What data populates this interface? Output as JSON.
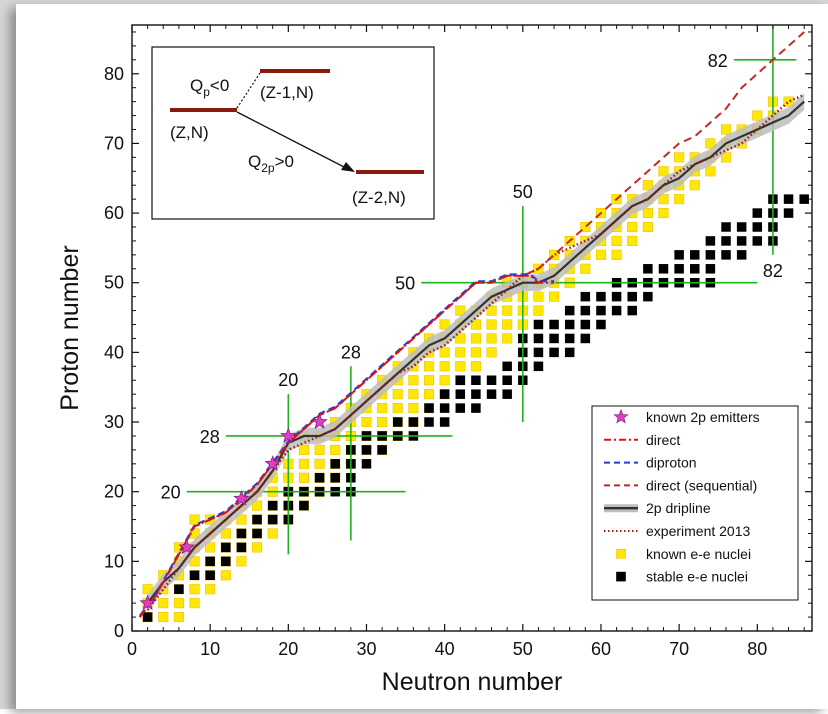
{
  "chart_data": {
    "type": "scatter",
    "xlabel": "Neutron number",
    "ylabel": "Proton number",
    "xlim": [
      0,
      87
    ],
    "ylim": [
      0,
      87
    ],
    "x_ticks": [
      "0",
      "10",
      "20",
      "30",
      "40",
      "50",
      "60",
      "70",
      "80"
    ],
    "y_ticks": [
      "0",
      "10",
      "20",
      "30",
      "40",
      "50",
      "60",
      "70",
      "80"
    ],
    "legend_position": "bottom-right",
    "magic_numbers": {
      "neutron": [
        {
          "label": "20",
          "n": 20,
          "z_range": [
            11,
            34
          ]
        },
        {
          "label": "28",
          "n": 28,
          "z_range": [
            13,
            38
          ]
        },
        {
          "label": "50",
          "n": 50,
          "z_range": [
            30,
            61
          ]
        },
        {
          "label": "82",
          "n": 82,
          "z_range": [
            54,
            87
          ]
        }
      ],
      "proton": [
        {
          "label": "20",
          "z": 20,
          "n_range": [
            7,
            35
          ]
        },
        {
          "label": "28",
          "z": 28,
          "n_range": [
            12,
            41
          ]
        },
        {
          "label": "50",
          "z": 50,
          "n_range": [
            37,
            80
          ]
        },
        {
          "label": "82",
          "z": 82,
          "n_range": [
            77,
            85
          ]
        }
      ]
    },
    "legend": [
      {
        "label": "known 2p emitters",
        "marker": "star",
        "color": "#e040c0"
      },
      {
        "label": "direct",
        "marker": "dashdot",
        "color": "#e01010"
      },
      {
        "label": "diproton",
        "marker": "dash",
        "color": "#1f3fd6"
      },
      {
        "label": "direct (sequential)",
        "marker": "dash",
        "color": "#c62828"
      },
      {
        "label": "2p dripline",
        "marker": "band",
        "color": "#333333"
      },
      {
        "label": "experiment 2013",
        "marker": "dot",
        "color": "#a01818"
      },
      {
        "label": "known e-e nuclei",
        "marker": "square",
        "color": "#ffe800"
      },
      {
        "label": "stable e-e nuclei",
        "marker": "square",
        "color": "#000000"
      }
    ],
    "series": [
      {
        "name": "known 2p emitters",
        "points": [
          [
            2,
            4
          ],
          [
            7,
            12
          ],
          [
            14,
            19
          ],
          [
            18,
            24
          ],
          [
            20,
            28
          ],
          [
            24,
            30
          ]
        ]
      },
      {
        "name": "direct",
        "x": [
          1,
          3,
          5,
          7,
          8,
          10,
          12,
          14,
          16,
          18,
          20,
          22,
          24,
          26,
          28,
          30,
          32,
          34,
          36,
          38,
          40,
          42,
          44,
          46,
          48,
          50,
          51,
          52,
          53,
          54
        ],
        "y": [
          2,
          5,
          9,
          13,
          15,
          16,
          17,
          19,
          21,
          24,
          27,
          29,
          31,
          32,
          34,
          36,
          38,
          40,
          42,
          44,
          46,
          48,
          50,
          50,
          51,
          51,
          51,
          50,
          50,
          50
        ]
      },
      {
        "name": "diproton",
        "x": [
          1,
          3,
          5,
          7,
          8,
          10,
          12,
          14,
          16,
          18,
          20,
          22,
          24,
          26,
          28,
          30,
          32,
          34,
          36,
          38,
          40,
          42,
          44,
          46,
          48,
          50,
          51,
          52,
          53,
          54
        ],
        "y": [
          2,
          5,
          9,
          13,
          15,
          16,
          17,
          19,
          21,
          24,
          27,
          29,
          31,
          32,
          34,
          36,
          38,
          40,
          42,
          44,
          46,
          48,
          50,
          50,
          51,
          51,
          51,
          50,
          50,
          50
        ]
      },
      {
        "name": "direct (sequential)",
        "x": [
          1,
          3,
          5,
          7,
          8,
          10,
          12,
          14,
          16,
          18,
          20,
          22,
          24,
          26,
          28,
          30,
          32,
          34,
          36,
          38,
          40,
          42,
          44,
          46,
          48,
          50,
          52,
          54,
          56,
          58,
          60,
          62,
          64,
          66,
          68,
          70,
          72,
          74,
          76,
          78,
          80,
          82,
          84,
          86
        ],
        "y": [
          2,
          5,
          9,
          13,
          15,
          16,
          17,
          19,
          21,
          24,
          27,
          29,
          31,
          32,
          34,
          36,
          38,
          40,
          42,
          44,
          46,
          48,
          50,
          50,
          51,
          51,
          52,
          54,
          56,
          58,
          60,
          62,
          64,
          66,
          68,
          70,
          71,
          73,
          75,
          78,
          80,
          82,
          84,
          86
        ]
      },
      {
        "name": "2p dripline",
        "x": [
          2,
          4,
          6,
          8,
          10,
          12,
          14,
          16,
          18,
          20,
          22,
          24,
          26,
          28,
          30,
          32,
          34,
          36,
          38,
          40,
          42,
          44,
          46,
          48,
          50,
          52,
          54,
          56,
          58,
          60,
          62,
          64,
          66,
          68,
          70,
          72,
          74,
          76,
          78,
          80,
          82,
          84,
          86
        ],
        "y": [
          4,
          7,
          9,
          12,
          14,
          16,
          18,
          20,
          23,
          27,
          28,
          28,
          29,
          31,
          33,
          35,
          37,
          39,
          41,
          42,
          44,
          46,
          48,
          49,
          50,
          50,
          51,
          53,
          55,
          57,
          59,
          61,
          62,
          64,
          65,
          67,
          68,
          70,
          71,
          72,
          73,
          74,
          76
        ]
      },
      {
        "name": "experiment 2013",
        "x": [
          2,
          4,
          6,
          8,
          10,
          12,
          14,
          16,
          18,
          20,
          22,
          24,
          26,
          28,
          30,
          32,
          34,
          36,
          38,
          40,
          42,
          44,
          46,
          48,
          50,
          52,
          54,
          56,
          58,
          60,
          62,
          64,
          66,
          68,
          70,
          72,
          74,
          76,
          78,
          80,
          82,
          84,
          86
        ],
        "y": [
          3,
          6,
          9,
          12,
          14,
          16,
          18,
          20,
          23,
          26,
          27,
          28,
          29,
          31,
          33,
          35,
          37,
          38,
          40,
          41,
          43,
          45,
          47,
          49,
          51,
          52,
          54,
          55,
          56,
          57,
          59,
          61,
          62,
          64,
          66,
          67,
          68,
          69,
          70,
          72,
          74,
          76,
          77
        ]
      }
    ],
    "known_ee_rows": [
      {
        "z": 2,
        "n": [
          2,
          6
        ]
      },
      {
        "z": 4,
        "n": [
          2,
          8
        ]
      },
      {
        "z": 6,
        "n": [
          2,
          10
        ]
      },
      {
        "z": 8,
        "n": [
          4,
          12
        ]
      },
      {
        "z": 10,
        "n": [
          6,
          14
        ]
      },
      {
        "z": 12,
        "n": [
          6,
          16
        ]
      },
      {
        "z": 14,
        "n": [
          8,
          18
        ]
      },
      {
        "z": 16,
        "n": [
          8,
          20
        ]
      },
      {
        "z": 18,
        "n": [
          14,
          22
        ]
      },
      {
        "z": 20,
        "n": [
          16,
          24
        ]
      },
      {
        "z": 22,
        "n": [
          18,
          26
        ]
      },
      {
        "z": 24,
        "n": [
          20,
          28
        ]
      },
      {
        "z": 26,
        "n": [
          22,
          32
        ]
      },
      {
        "z": 28,
        "n": [
          22,
          34
        ]
      },
      {
        "z": 30,
        "n": [
          26,
          36
        ]
      },
      {
        "z": 32,
        "n": [
          28,
          38
        ]
      },
      {
        "z": 34,
        "n": [
          30,
          40
        ]
      },
      {
        "z": 36,
        "n": [
          32,
          42
        ]
      },
      {
        "z": 38,
        "n": [
          34,
          44
        ]
      },
      {
        "z": 40,
        "n": [
          36,
          46
        ]
      },
      {
        "z": 42,
        "n": [
          38,
          48
        ]
      },
      {
        "z": 44,
        "n": [
          40,
          50
        ]
      },
      {
        "z": 46,
        "n": [
          42,
          52
        ]
      },
      {
        "z": 48,
        "n": [
          46,
          54
        ]
      },
      {
        "z": 50,
        "n": [
          48,
          56
        ]
      },
      {
        "z": 52,
        "n": [
          52,
          58
        ]
      },
      {
        "z": 54,
        "n": [
          54,
          62
        ]
      },
      {
        "z": 56,
        "n": [
          56,
          64
        ]
      },
      {
        "z": 58,
        "n": [
          58,
          66
        ]
      },
      {
        "z": 60,
        "n": [
          60,
          68
        ]
      },
      {
        "z": 62,
        "n": [
          62,
          70
        ]
      },
      {
        "z": 64,
        "n": [
          66,
          72
        ]
      },
      {
        "z": 66,
        "n": [
          68,
          74
        ]
      },
      {
        "z": 68,
        "n": [
          70,
          76
        ]
      },
      {
        "z": 70,
        "n": [
          74,
          78
        ]
      },
      {
        "z": 72,
        "n": [
          76,
          80
        ]
      },
      {
        "z": 74,
        "n": [
          80,
          82
        ]
      },
      {
        "z": 76,
        "n": [
          82,
          84
        ]
      }
    ],
    "stable_ee_rows": [
      {
        "z": 2,
        "n": [
          2,
          2
        ]
      },
      {
        "z": 6,
        "n": [
          6,
          6
        ]
      },
      {
        "z": 8,
        "n": [
          8,
          10
        ]
      },
      {
        "z": 10,
        "n": [
          10,
          12
        ]
      },
      {
        "z": 12,
        "n": [
          12,
          14
        ]
      },
      {
        "z": 14,
        "n": [
          14,
          16
        ]
      },
      {
        "z": 16,
        "n": [
          16,
          20
        ]
      },
      {
        "z": 18,
        "n": [
          18,
          22
        ]
      },
      {
        "z": 20,
        "n": [
          20,
          28
        ]
      },
      {
        "z": 22,
        "n": [
          24,
          28
        ]
      },
      {
        "z": 24,
        "n": [
          26,
          30
        ]
      },
      {
        "z": 26,
        "n": [
          28,
          32
        ]
      },
      {
        "z": 28,
        "n": [
          30,
          36
        ]
      },
      {
        "z": 30,
        "n": [
          34,
          40
        ]
      },
      {
        "z": 32,
        "n": [
          38,
          44
        ]
      },
      {
        "z": 34,
        "n": [
          40,
          48
        ]
      },
      {
        "z": 36,
        "n": [
          42,
          50
        ]
      },
      {
        "z": 38,
        "n": [
          48,
          52
        ]
      },
      {
        "z": 40,
        "n": [
          50,
          56
        ]
      },
      {
        "z": 42,
        "n": [
          50,
          58
        ]
      },
      {
        "z": 44,
        "n": [
          52,
          60
        ]
      },
      {
        "z": 46,
        "n": [
          56,
          64
        ]
      },
      {
        "z": 48,
        "n": [
          58,
          66
        ]
      },
      {
        "z": 50,
        "n": [
          62,
          74
        ]
      },
      {
        "z": 52,
        "n": [
          66,
          74
        ]
      },
      {
        "z": 54,
        "n": [
          70,
          78
        ]
      },
      {
        "z": 56,
        "n": [
          74,
          82
        ]
      },
      {
        "z": 58,
        "n": [
          76,
          82
        ]
      },
      {
        "z": 60,
        "n": [
          80,
          84
        ]
      },
      {
        "z": 62,
        "n": [
          82,
          86
        ]
      }
    ]
  },
  "inset": {
    "qp_label": "Q",
    "qp_sub": "p",
    "qp_rest": "<0",
    "q2p_label": "Q",
    "q2p_sub": "2p",
    "q2p_rest": ">0",
    "level_zn": "(Z,N)",
    "level_z1n": "(Z-1,N)",
    "level_z2n": "(Z-2,N)"
  }
}
